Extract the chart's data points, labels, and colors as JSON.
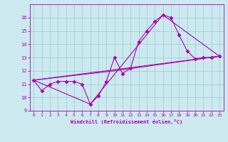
{
  "xlabel": "Windchill (Refroidissement éolien,°C)",
  "xlim": [
    -0.5,
    23.5
  ],
  "ylim": [
    9,
    17
  ],
  "yticks": [
    9,
    10,
    11,
    12,
    13,
    14,
    15,
    16
  ],
  "xticks": [
    0,
    1,
    2,
    3,
    4,
    5,
    6,
    7,
    8,
    9,
    10,
    11,
    12,
    13,
    14,
    15,
    16,
    17,
    18,
    19,
    20,
    21,
    22,
    23
  ],
  "bg_color": "#cce9f0",
  "line_color": "#aa00aa",
  "grid_color": "#99cccc",
  "series": [
    {
      "x": [
        0,
        1,
        2,
        3,
        4,
        5,
        6,
        7,
        8,
        9,
        10,
        11,
        12,
        13,
        14,
        15,
        16,
        17,
        18,
        19,
        20,
        21,
        22,
        23
      ],
      "y": [
        11.3,
        10.5,
        11.0,
        11.2,
        11.2,
        11.2,
        11.0,
        9.5,
        10.1,
        11.2,
        13.0,
        11.8,
        12.2,
        14.2,
        15.0,
        15.7,
        16.2,
        16.0,
        14.7,
        13.5,
        12.9,
        13.0,
        13.0,
        13.1
      ],
      "marker": "D",
      "markersize": 2.5,
      "linewidth": 0.8,
      "has_marker": true
    },
    {
      "x": [
        0,
        23
      ],
      "y": [
        11.3,
        13.1
      ],
      "marker": null,
      "markersize": 0,
      "linewidth": 0.8,
      "has_marker": false
    },
    {
      "x": [
        0,
        10,
        23
      ],
      "y": [
        11.3,
        12.0,
        13.1
      ],
      "marker": null,
      "markersize": 0,
      "linewidth": 0.8,
      "has_marker": false
    },
    {
      "x": [
        0,
        7,
        16,
        23
      ],
      "y": [
        11.3,
        9.5,
        16.2,
        13.1
      ],
      "marker": null,
      "markersize": 0,
      "linewidth": 0.8,
      "has_marker": false
    }
  ]
}
